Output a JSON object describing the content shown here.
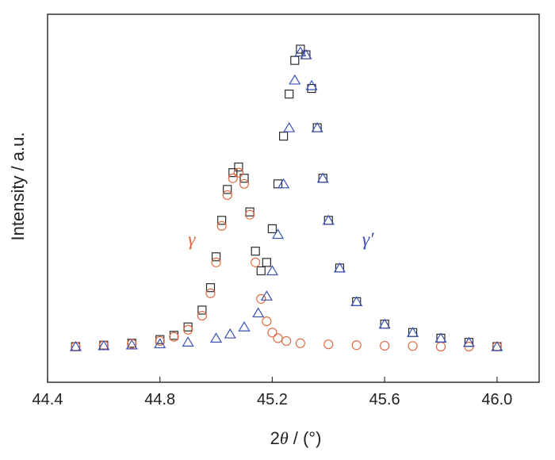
{
  "chart_data": {
    "type": "scatter",
    "xlabel_prefix": "2",
    "xlabel_theta": "θ",
    "xlabel_suffix": " / (°)",
    "ylabel": "Intensity / a.u.",
    "xlim": [
      44.4,
      46.15
    ],
    "ylim": [
      0,
      1.15
    ],
    "xticks": [
      "44.4",
      "44.8",
      "45.2",
      "45.6",
      "46.0"
    ],
    "y_tick_labels": "none",
    "grid": false,
    "annotations": [
      {
        "text": "γ",
        "color": "#e06a44",
        "x": 44.9,
        "y": 0.36
      },
      {
        "text": "γ′",
        "color": "#3a52b8",
        "x": 45.52,
        "y": 0.36
      }
    ],
    "series": [
      {
        "marker": "square",
        "color": "#2a2a2a",
        "x": [
          44.5,
          44.6,
          44.7,
          44.8,
          44.85,
          44.9,
          44.95,
          44.98,
          45.0,
          45.02,
          45.04,
          45.06,
          45.08,
          45.1,
          45.12,
          45.14,
          45.16,
          45.18,
          45.2,
          45.22,
          45.24,
          45.26,
          45.28,
          45.3,
          45.32,
          45.34,
          45.36,
          45.38,
          45.4,
          45.44,
          45.5,
          45.6,
          45.7,
          45.8,
          45.9,
          46.0
        ],
        "y": [
          0.0,
          0.005,
          0.012,
          0.025,
          0.04,
          0.07,
          0.13,
          0.21,
          0.32,
          0.45,
          0.56,
          0.62,
          0.64,
          0.6,
          0.48,
          0.34,
          0.27,
          0.3,
          0.42,
          0.58,
          0.75,
          0.9,
          1.02,
          1.06,
          1.04,
          0.92,
          0.78,
          0.6,
          0.45,
          0.28,
          0.16,
          0.08,
          0.05,
          0.03,
          0.015,
          0.0
        ]
      },
      {
        "marker": "circle",
        "color": "#e06a44",
        "x": [
          44.5,
          44.6,
          44.7,
          44.8,
          44.85,
          44.9,
          44.95,
          44.98,
          45.0,
          45.02,
          45.04,
          45.06,
          45.08,
          45.1,
          45.12,
          45.14,
          45.16,
          45.18,
          45.2,
          45.22,
          45.25,
          45.3,
          45.4,
          45.5,
          45.6,
          45.7,
          45.8,
          45.9,
          46.0
        ],
        "y": [
          0.0,
          0.004,
          0.01,
          0.02,
          0.035,
          0.06,
          0.11,
          0.19,
          0.3,
          0.43,
          0.54,
          0.6,
          0.62,
          0.58,
          0.47,
          0.3,
          0.17,
          0.09,
          0.05,
          0.03,
          0.02,
          0.012,
          0.008,
          0.005,
          0.003,
          0.002,
          0.0,
          0.0,
          0.0
        ]
      },
      {
        "marker": "triangle",
        "color": "#3a52b8",
        "x": [
          44.5,
          44.6,
          44.7,
          44.8,
          44.9,
          45.0,
          45.05,
          45.1,
          45.15,
          45.18,
          45.2,
          45.22,
          45.24,
          45.26,
          45.28,
          45.3,
          45.32,
          45.34,
          45.36,
          45.38,
          45.4,
          45.44,
          45.5,
          45.6,
          45.7,
          45.8,
          45.9,
          46.0
        ],
        "y": [
          0.0,
          0.003,
          0.006,
          0.01,
          0.016,
          0.03,
          0.045,
          0.07,
          0.12,
          0.18,
          0.27,
          0.4,
          0.58,
          0.78,
          0.95,
          1.05,
          1.04,
          0.93,
          0.78,
          0.6,
          0.45,
          0.28,
          0.16,
          0.08,
          0.05,
          0.03,
          0.015,
          0.0
        ]
      }
    ]
  }
}
